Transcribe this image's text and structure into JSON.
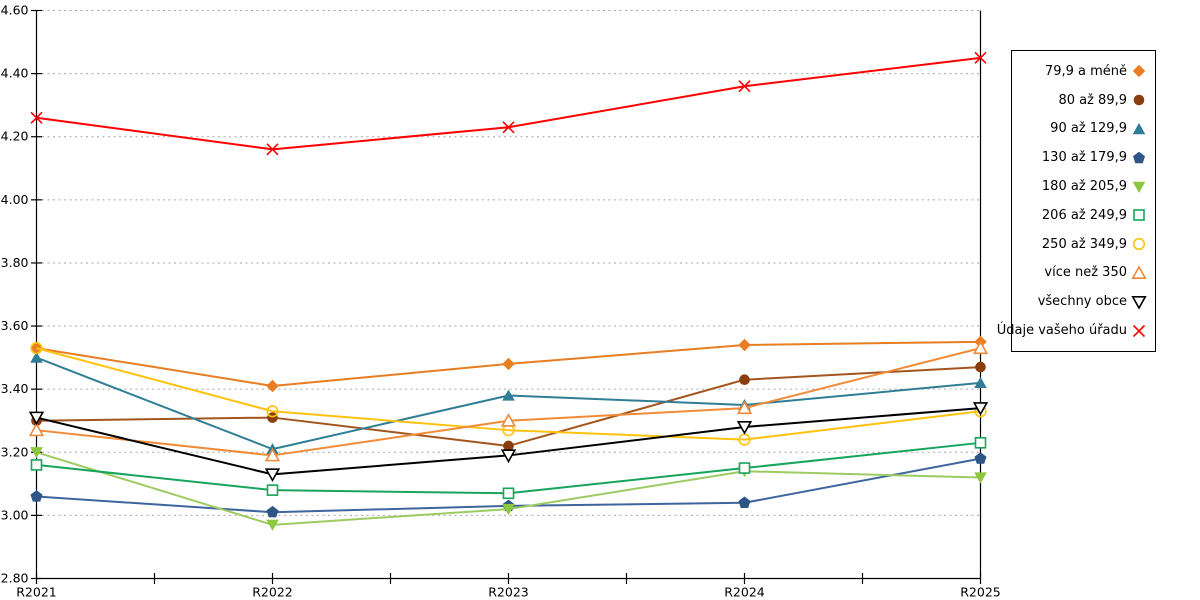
{
  "chart_data": {
    "type": "line",
    "title": "",
    "xlabel": "",
    "ylabel": "",
    "categories": [
      "R2021",
      "R2022",
      "R2023",
      "R2024",
      "R2025"
    ],
    "series": [
      {
        "name": "79,9 a méně",
        "marker": "diamond",
        "style": "filled",
        "line_color": "#E87D22",
        "marker_color": "#E87D22",
        "values": [
          3.53,
          3.41,
          3.48,
          3.54,
          3.55
        ]
      },
      {
        "name": "80 až 89,9",
        "marker": "circle",
        "style": "filled",
        "line_color": "#A3551E",
        "marker_color": "#8B3D10",
        "values": [
          3.3,
          3.31,
          3.22,
          3.43,
          3.47
        ]
      },
      {
        "name": "90 až 129,9",
        "marker": "triangle-up",
        "style": "filled",
        "line_color": "#2F7E95",
        "marker_color": "#2F7E95",
        "values": [
          3.5,
          3.21,
          3.38,
          3.35,
          3.42
        ]
      },
      {
        "name": "130 až 179,9",
        "marker": "pentagon",
        "style": "filled",
        "line_color": "#3E659C",
        "marker_color": "#2D5585",
        "values": [
          3.06,
          3.01,
          3.03,
          3.04,
          3.18
        ]
      },
      {
        "name": "180 až 205,9",
        "marker": "triangle-down",
        "style": "filled",
        "line_color": "#9CCB62",
        "marker_color": "#8DC63F",
        "values": [
          3.2,
          2.97,
          3.02,
          3.14,
          3.12
        ]
      },
      {
        "name": "206 až 249,9",
        "marker": "square",
        "style": "open",
        "line_color": "#17A45C",
        "marker_color": "#17A45C",
        "values": [
          3.16,
          3.08,
          3.07,
          3.15,
          3.23
        ]
      },
      {
        "name": "250 až 349,9",
        "marker": "circle",
        "style": "open",
        "line_color": "#FFC20E",
        "marker_color": "#FFC20E",
        "values": [
          3.53,
          3.33,
          3.27,
          3.24,
          3.33
        ]
      },
      {
        "name": "více než 350",
        "marker": "triangle-up",
        "style": "open",
        "line_color": "#F08A36",
        "marker_color": "#F08A36",
        "values": [
          3.27,
          3.19,
          3.3,
          3.34,
          3.53
        ]
      },
      {
        "name": "všechny obce",
        "marker": "triangle-down",
        "style": "open",
        "line_color": "#000000",
        "marker_color": "#000000",
        "values": [
          3.31,
          3.13,
          3.19,
          3.28,
          3.34
        ]
      },
      {
        "name": "Údaje vašeho úřadu",
        "marker": "x",
        "style": "x",
        "line_color": "#FF0000",
        "marker_color": "#FF0000",
        "values": [
          4.26,
          4.16,
          4.23,
          4.36,
          4.45
        ]
      }
    ],
    "ylim": [
      2.8,
      4.6
    ],
    "ytick_step": 0.2,
    "ytick_labels": [
      "2.80",
      "3.00",
      "3.20",
      "3.40",
      "3.60",
      "3.80",
      "4.00",
      "4.20",
      "4.40",
      "4.60"
    ],
    "grid": "horizontal-dashed",
    "legend_position": "right"
  },
  "style": {
    "grid_color": "#A6A6A6",
    "axis_color": "#000000",
    "background": "#FFFFFF",
    "open_marker_fill": "#FFFFFF"
  }
}
